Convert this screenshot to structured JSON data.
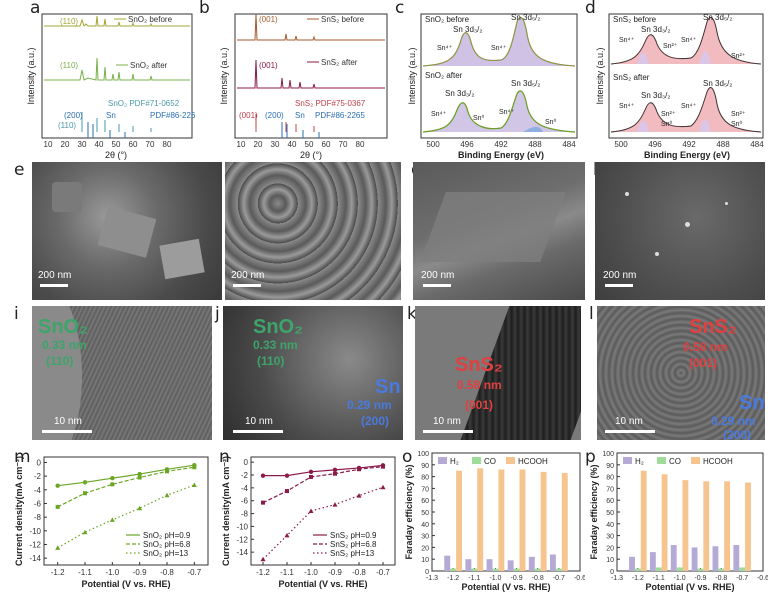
{
  "panel_letters": {
    "a": "a",
    "b": "b",
    "c": "c",
    "d": "d",
    "e": "e",
    "f": "f",
    "g": "g",
    "h": "h",
    "i": "i",
    "j": "j",
    "k": "k",
    "l": "l",
    "m": "m",
    "n": "n",
    "o": "o",
    "p": "p"
  },
  "xrd": {
    "ylabel": "Intensity (a.u.)",
    "xlabel": "2θ (°)",
    "xticks": [
      "10",
      "20",
      "30",
      "40",
      "50",
      "60",
      "70",
      "80"
    ],
    "a": {
      "peak_before": "(110)",
      "legend_before": "SnO₂ before",
      "peak_after": "(110)",
      "legend_after": "SnO₂ after",
      "ref1": "SnO₂ PDF#71-0652",
      "ref2_name": "Sn",
      "ref2_pdf": "PDF#86-2265",
      "ref_peak1": "(200)",
      "ref_peak2": "(110)"
    },
    "b": {
      "peak_before": "(001)",
      "legend_before": "SnS₂ before",
      "peak_after": "(001)",
      "legend_after": "SnS₂ after",
      "ref1": "SnS₂ PDF#75-0367",
      "ref2_name": "Sn",
      "ref2_pdf": "PDF#86-2265",
      "ref_peak1": "(001)",
      "ref_peak2": "(200)"
    }
  },
  "xps": {
    "ylabel": "Intensity (a.u.)",
    "xlabel": "Binding Energy (eV)",
    "xticks": [
      "500",
      "496",
      "492",
      "488",
      "484"
    ],
    "c": {
      "before": "SnO₂ before",
      "after": "SnO₂ after"
    },
    "d": {
      "before": "SnS₂ before",
      "after": "SnS₂ after"
    },
    "sn3d32": "Sn 3d₃/₂",
    "sn3d52": "Sn 3d₅/₂",
    "sn4": "Sn⁴⁺",
    "sn2": "Sn²⁺",
    "sn0": "Sn⁰"
  },
  "sem": {
    "scale": "200 nm"
  },
  "tem": {
    "scale": "10 nm",
    "i": {
      "phase": "SnO₂",
      "d": "0.33 nm",
      "hkl": "(110)"
    },
    "j": {
      "phase": "SnO₂",
      "d": "0.33 nm",
      "hkl": "(110)",
      "phase2": "Sn",
      "d2": "0.29 nm",
      "hkl2": "(200)"
    },
    "k": {
      "phase": "SnS₂",
      "d": "0.58 nm",
      "hkl": "(001)"
    },
    "l": {
      "phase": "SnS₂",
      "d": "0.58 nm",
      "hkl": "(001)",
      "phase2": "Sn",
      "d2": "0.29 nm",
      "hkl2": "(200)"
    }
  },
  "chart_data": [
    {
      "panel": "m",
      "type": "line",
      "xlabel": "Potential (V vs. RHE)",
      "ylabel": "Current density(mA cm⁻²)",
      "x": [
        -1.2,
        -1.1,
        -1.0,
        -0.9,
        -0.8,
        -0.7
      ],
      "xticks": [
        "-1.2",
        "-1.1",
        "-1.0",
        "-0.9",
        "-0.8",
        "-0.7"
      ],
      "yticks": [
        "0",
        "-2",
        "-4",
        "-6",
        "-8",
        "-10",
        "-12",
        "-14"
      ],
      "xlim": [
        -1.25,
        -0.65
      ],
      "ylim": [
        -15,
        0.8
      ],
      "color": "#6ba626",
      "series": [
        {
          "name": "SnO₂ pH=0.9",
          "values": [
            -3.4,
            -2.9,
            -2.3,
            -1.7,
            -1.0,
            -0.4
          ]
        },
        {
          "name": "SnO₂ pH=6.8",
          "values": [
            -6.5,
            -4.5,
            -3.2,
            -2.2,
            -1.3,
            -0.7
          ]
        },
        {
          "name": "SnO₂ pH=13",
          "values": [
            -12.5,
            -10.2,
            -8.4,
            -6.7,
            -4.8,
            -3.3
          ]
        }
      ]
    },
    {
      "panel": "n",
      "type": "line",
      "xlabel": "Potential (V vs. RHE)",
      "ylabel": "Current density(mA cm⁻²)",
      "x": [
        -1.2,
        -1.1,
        -1.0,
        -0.9,
        -0.8,
        -0.7
      ],
      "xticks": [
        "-1.2",
        "-1.1",
        "-1.0",
        "-0.9",
        "-0.8",
        "-0.7"
      ],
      "yticks": [
        "0",
        "-2",
        "-4",
        "-6",
        "-8",
        "-10",
        "-12",
        "-14"
      ],
      "xlim": [
        -1.25,
        -0.65
      ],
      "ylim": [
        -16,
        0.8
      ],
      "color": "#8b1a4a",
      "series": [
        {
          "name": "SnS₂ pH=0.9",
          "values": [
            -2.1,
            -2.1,
            -1.5,
            -1.2,
            -0.9,
            -0.5
          ]
        },
        {
          "name": "SnS₂ pH=6.8",
          "values": [
            -6.3,
            -4.5,
            -2.3,
            -1.8,
            -1.1,
            -0.7
          ]
        },
        {
          "name": "SnS₂ pH=13",
          "values": [
            -15.1,
            -11.4,
            -7.6,
            -6.6,
            -5.2,
            -3.9
          ]
        }
      ]
    },
    {
      "panel": "o",
      "type": "bar",
      "xlabel": "Potential (V vs. RHE)",
      "ylabel": "Faraday efficiency (%)",
      "categories": [
        -1.2,
        -1.1,
        -1.0,
        -0.9,
        -0.8,
        -0.7
      ],
      "xticks": [
        "-1.3",
        "-1.2",
        "-1.1",
        "-1.0",
        "-0.9",
        "-0.8",
        "-0.7",
        "-0.6"
      ],
      "yticks": [
        "0",
        "10",
        "20",
        "30",
        "40",
        "50",
        "60",
        "70",
        "80",
        "90",
        "100"
      ],
      "xlim": [
        -1.3,
        -0.6
      ],
      "ylim": [
        0,
        100
      ],
      "series": [
        {
          "name": "H₂",
          "color": "#b5a9d6",
          "values": [
            13,
            10,
            10,
            9,
            12,
            14
          ]
        },
        {
          "name": "CO",
          "color": "#9fdc9a",
          "values": [
            2,
            2,
            2,
            2,
            2,
            2
          ]
        },
        {
          "name": "HCOOH",
          "color": "#f6c48e",
          "values": [
            85,
            87,
            86,
            86,
            84,
            83
          ]
        }
      ]
    },
    {
      "panel": "p",
      "type": "bar",
      "xlabel": "Potential (V vs. RHE)",
      "ylabel": "Faraday efficiency (%)",
      "categories": [
        -1.2,
        -1.1,
        -1.0,
        -0.9,
        -0.8,
        -0.7
      ],
      "xticks": [
        "-1.3",
        "-1.2",
        "-1.1",
        "-1.0",
        "-0.9",
        "-0.8",
        "-0.7",
        "-0.6"
      ],
      "yticks": [
        "0",
        "10",
        "20",
        "30",
        "40",
        "50",
        "60",
        "70",
        "80",
        "90",
        "100"
      ],
      "xlim": [
        -1.3,
        -0.6
      ],
      "ylim": [
        0,
        100
      ],
      "series": [
        {
          "name": "H₂",
          "color": "#b5a9d6",
          "values": [
            12,
            16,
            22,
            20,
            21,
            22
          ]
        },
        {
          "name": "CO",
          "color": "#9fdc9a",
          "values": [
            2,
            3,
            3,
            2,
            2,
            3
          ]
        },
        {
          "name": "HCOOH",
          "color": "#f6c48e",
          "values": [
            85,
            82,
            77,
            76,
            76,
            75
          ]
        }
      ]
    }
  ]
}
